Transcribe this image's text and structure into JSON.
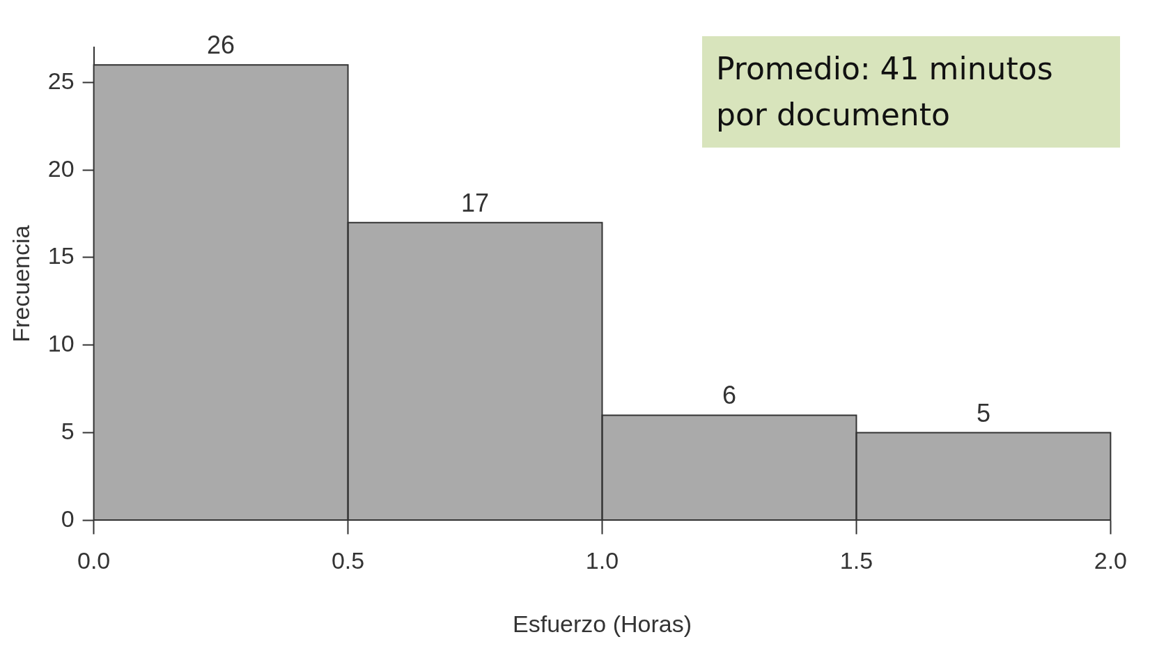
{
  "chart_data": {
    "type": "histogram",
    "xlabel": "Esfuerzo (Horas)",
    "ylabel": "Frecuencia",
    "bins": [
      0,
      0.5,
      1,
      1.5,
      2
    ],
    "values": [
      26,
      17,
      6,
      5
    ],
    "color": "#aaaaaa",
    "data_labels": true,
    "xlim": [
      0,
      2
    ],
    "xticks": [
      {
        "value": 0,
        "label": "0.0"
      },
      {
        "value": 0.5,
        "label": "0.5"
      },
      {
        "value": 1,
        "label": "1.0"
      },
      {
        "value": 1.5,
        "label": "1.5"
      },
      {
        "value": 2,
        "label": "2.0"
      }
    ],
    "ylim": [
      0,
      27
    ],
    "yticks": [
      0,
      5,
      10,
      15,
      20,
      25
    ],
    "grid": false,
    "legend": false,
    "annotations": [
      "Promedio: 41 minutos por documento"
    ]
  }
}
